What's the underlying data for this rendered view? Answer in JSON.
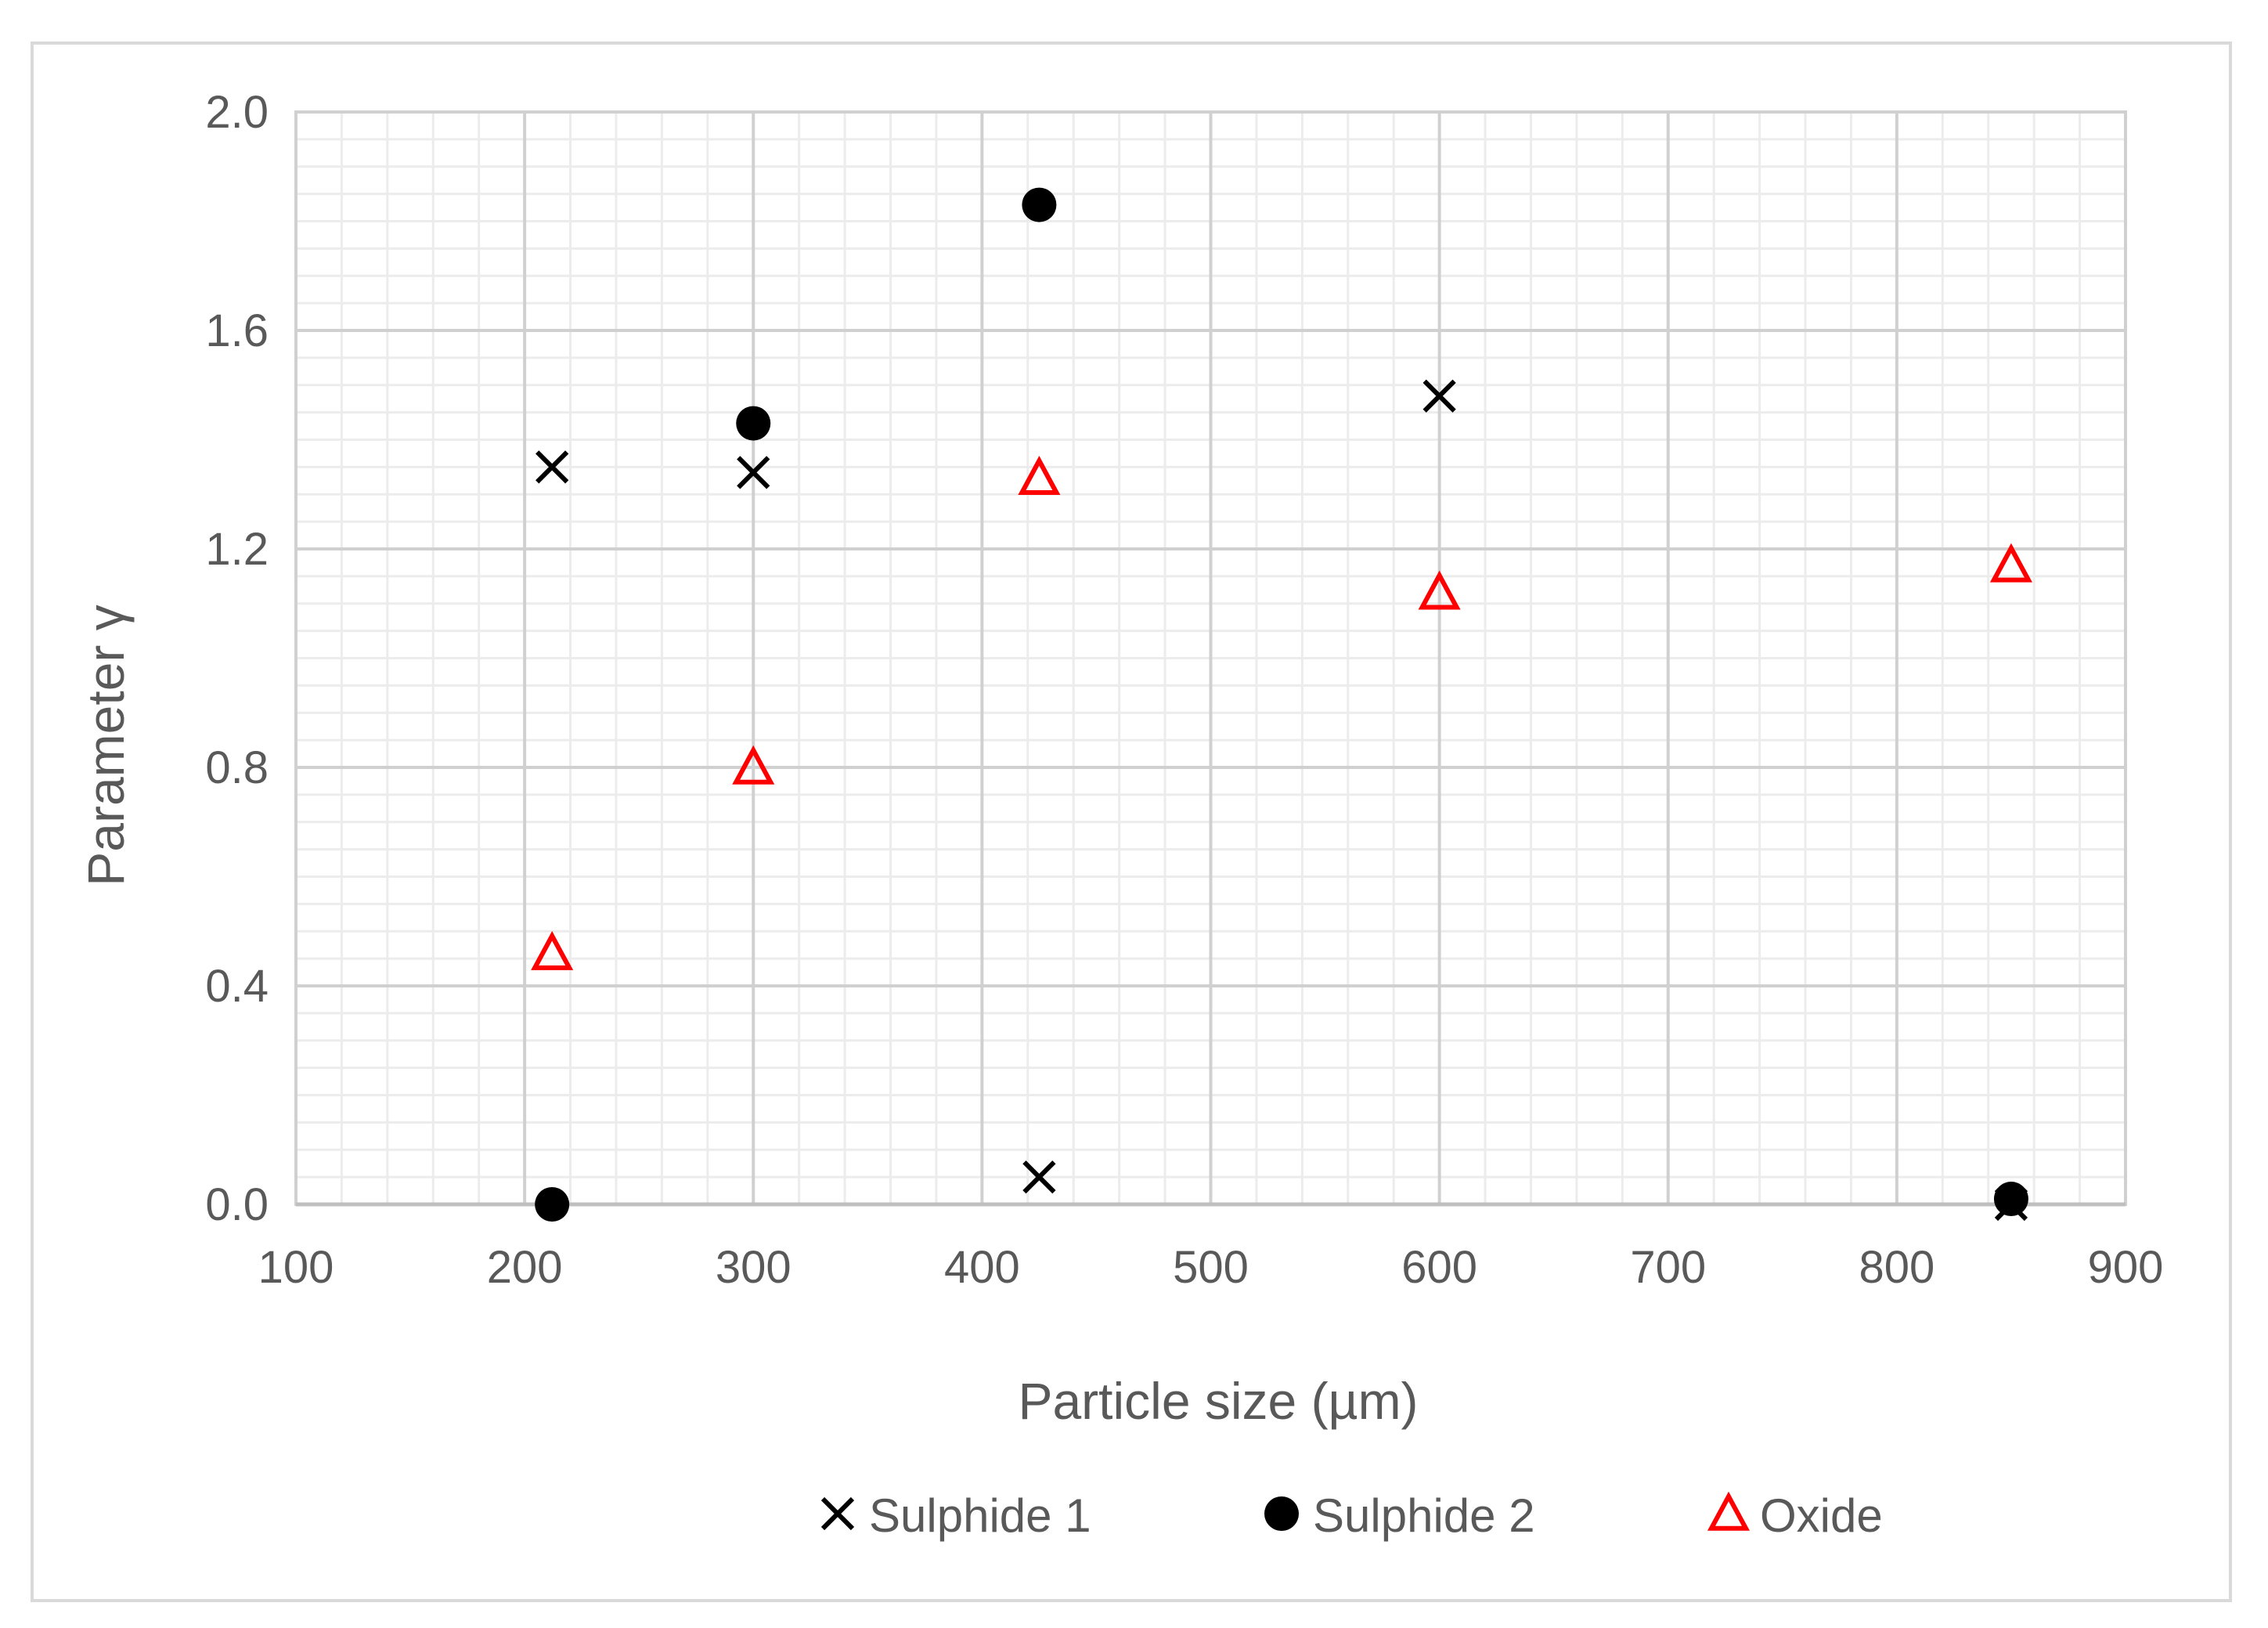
{
  "chart_data": {
    "type": "scatter",
    "title": "",
    "xlabel": "Particle size (µm)",
    "ylabel": "Parameter γ",
    "xlim": [
      100,
      900
    ],
    "ylim": [
      0,
      2.0
    ],
    "x_ticks": [
      100,
      200,
      300,
      400,
      500,
      600,
      700,
      800,
      900
    ],
    "x_tick_labels": [
      "100",
      "200",
      "300",
      "400",
      "500",
      "600",
      "700",
      "800",
      "900"
    ],
    "y_ticks": [
      0,
      0.4,
      0.8,
      1.2,
      1.6,
      2.0
    ],
    "y_tick_labels": [
      "0.0",
      "0.4",
      "0.8",
      "1.2",
      "1.6",
      "2.0"
    ],
    "grid": true,
    "minor_grid": true,
    "legend_position": "bottom",
    "series": [
      {
        "name": "Sulphide 1",
        "marker": "x",
        "color": "#000000",
        "points": [
          {
            "x": 212,
            "y": 1.35
          },
          {
            "x": 300,
            "y": 1.34
          },
          {
            "x": 425,
            "y": 0.05
          },
          {
            "x": 600,
            "y": 1.48
          },
          {
            "x": 850,
            "y": 0.0
          }
        ]
      },
      {
        "name": "Sulphide 2",
        "marker": "circle",
        "color": "#000000",
        "points": [
          {
            "x": 212,
            "y": 0.0
          },
          {
            "x": 300,
            "y": 1.43
          },
          {
            "x": 425,
            "y": 1.83
          },
          {
            "x": 850,
            "y": 0.01
          }
        ]
      },
      {
        "name": "Oxide",
        "marker": "triangle-open",
        "color": "#ff0000",
        "points": [
          {
            "x": 212,
            "y": 0.46
          },
          {
            "x": 300,
            "y": 0.8
          },
          {
            "x": 425,
            "y": 1.33
          },
          {
            "x": 600,
            "y": 1.12
          },
          {
            "x": 850,
            "y": 1.17
          }
        ]
      }
    ]
  }
}
